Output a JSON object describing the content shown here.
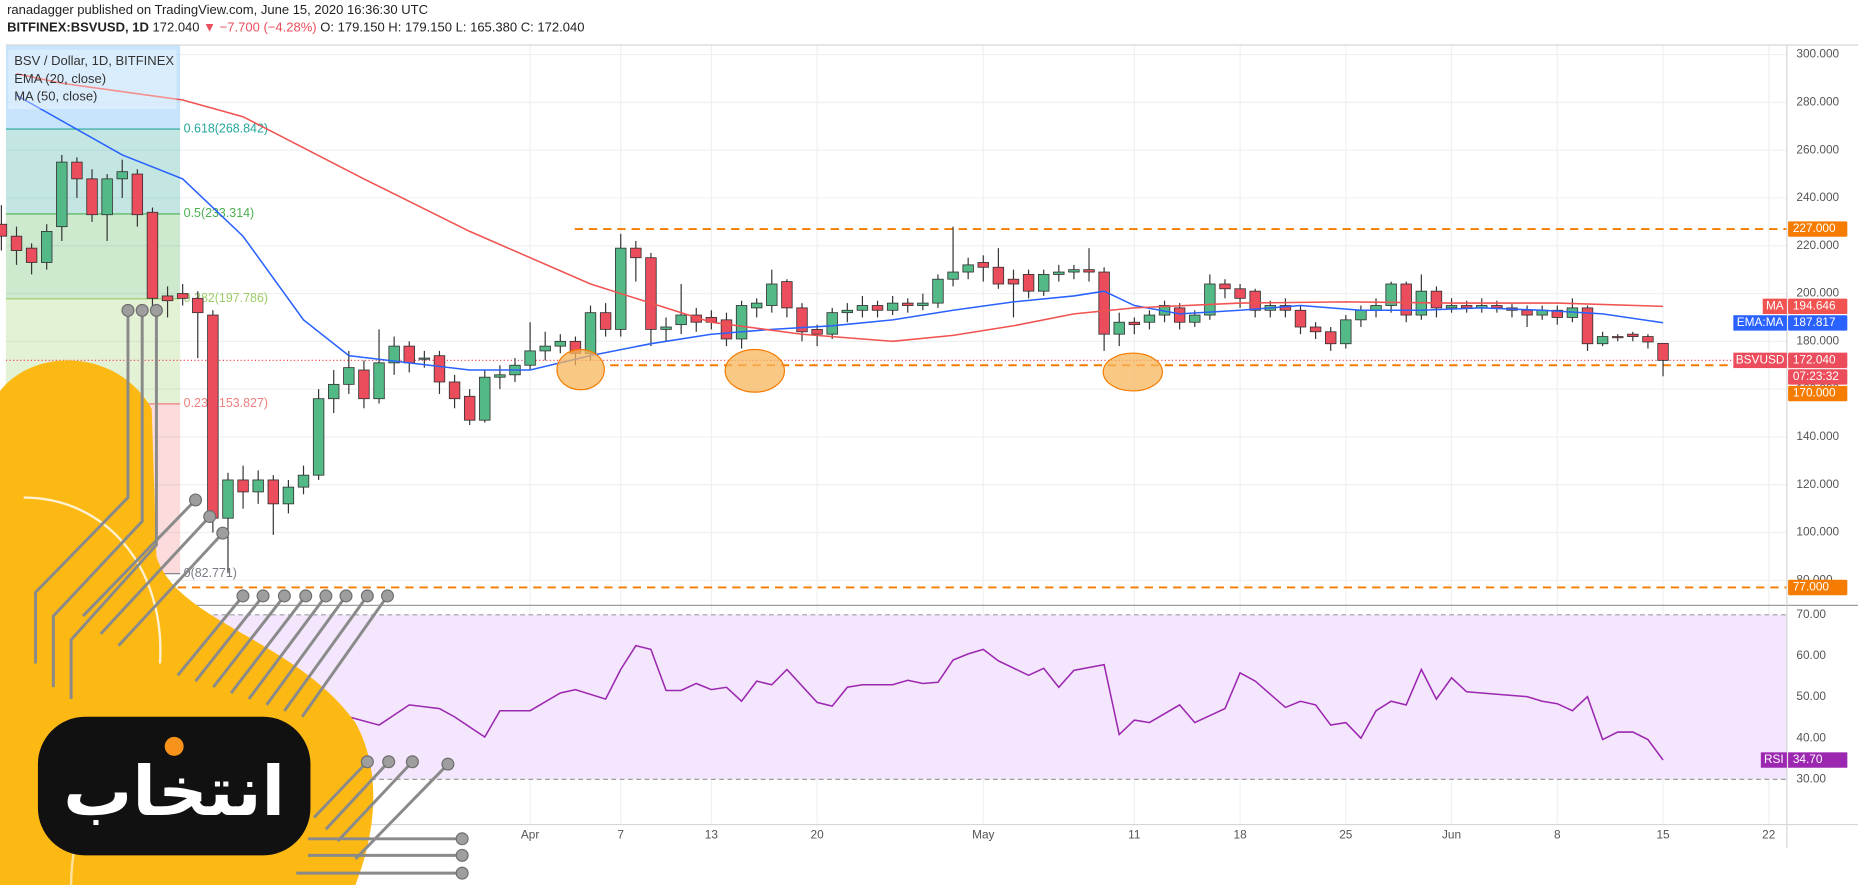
{
  "header": {
    "publisher": "ranadagger published on TradingView.com, June 15, 2020 16:36:30 UTC",
    "symbol": "BITFINEX:BSVUSD, 1D",
    "price": "172.040",
    "change": "▼ −7.700 (−4.28%)",
    "ohlc": "O: 179.150 H: 179.150 L: 165.380 C: 172.040"
  },
  "chart_data": {
    "type": "candlestick",
    "legend": [
      "BSV / Dollar, 1D, BITFINEX",
      "EMA (20, close)",
      "MA (50, close)"
    ],
    "up_color": "#53b987",
    "down_color": "#eb4d5c",
    "xlim": [
      0.3,
      118.2
    ],
    "xticks": [
      {
        "value": 35,
        "label": "Apr"
      },
      {
        "value": 41,
        "label": "7"
      },
      {
        "value": 47,
        "label": "13"
      },
      {
        "value": 54,
        "label": "20"
      },
      {
        "value": 65,
        "label": "May"
      },
      {
        "value": 75,
        "label": "11"
      },
      {
        "value": 82,
        "label": "18"
      },
      {
        "value": 89,
        "label": "25"
      },
      {
        "value": 96,
        "label": "Jun"
      },
      {
        "value": 103,
        "label": "8"
      },
      {
        "value": 110,
        "label": "15"
      },
      {
        "value": 117,
        "label": "22"
      }
    ],
    "ylim": [
      70,
      304
    ],
    "yticks": [
      {
        "value": 80,
        "label": "80.000"
      },
      {
        "value": 100,
        "label": "100.000"
      },
      {
        "value": 120,
        "label": "120.000"
      },
      {
        "value": 140,
        "label": "140.000"
      },
      {
        "value": 160,
        "label": "160.000"
      },
      {
        "value": 180,
        "label": "180.000"
      },
      {
        "value": 200,
        "label": "200.000"
      },
      {
        "value": 220,
        "label": "220.000"
      },
      {
        "value": 240,
        "label": "240.000"
      },
      {
        "value": 260,
        "label": "260.000"
      },
      {
        "value": 280,
        "label": "280.000"
      },
      {
        "value": 300,
        "label": "300.000"
      }
    ],
    "open": [
      229,
      224,
      219,
      213,
      228,
      255,
      248,
      233,
      248,
      250,
      234,
      199,
      200,
      198,
      191,
      106,
      122,
      117,
      122,
      112,
      119,
      124,
      156,
      162,
      168,
      156,
      171,
      178,
      173,
      174,
      163,
      157,
      147,
      165,
      166,
      170,
      176,
      178,
      180,
      175,
      192,
      185,
      219,
      215,
      185,
      187,
      191,
      190,
      189,
      181,
      194,
      195,
      205,
      194,
      185,
      183,
      192,
      193,
      195,
      193,
      196,
      195,
      196,
      206,
      209,
      213,
      211,
      206,
      208,
      201,
      208,
      209,
      210,
      209,
      183,
      188,
      188,
      191,
      194,
      188,
      191,
      204,
      202,
      201,
      193,
      195,
      193,
      186,
      184,
      179,
      189,
      193,
      195,
      204,
      191,
      201,
      194,
      195,
      194,
      195,
      194,
      193,
      191,
      193,
      190,
      194,
      179,
      182,
      183,
      182,
      179.15
    ],
    "high": [
      237,
      228,
      221,
      229,
      258,
      257,
      252,
      250,
      256,
      252,
      236,
      203,
      204,
      201,
      193,
      125,
      128,
      126,
      124,
      122,
      128,
      160,
      168,
      176,
      172,
      185,
      182,
      180,
      176,
      176,
      166,
      160,
      168,
      170,
      173,
      188,
      184,
      183,
      182,
      195,
      196,
      225,
      222,
      217,
      190,
      204,
      194,
      193,
      192,
      197,
      198,
      210,
      206,
      196,
      187,
      194,
      196,
      199,
      197,
      199,
      198,
      200,
      208,
      228,
      215,
      216,
      219,
      210,
      210,
      210,
      212,
      212,
      219,
      211,
      192,
      190,
      193,
      197,
      196,
      193,
      208,
      206,
      204,
      202,
      197,
      198,
      195,
      188,
      186,
      191,
      195,
      198,
      205,
      205,
      208,
      203,
      198,
      197,
      198,
      197,
      196,
      195,
      195,
      195,
      198,
      195,
      184,
      183,
      184,
      183,
      179.15
    ],
    "low": [
      218,
      212,
      208,
      210,
      222,
      240,
      230,
      222,
      240,
      228,
      194,
      190,
      195,
      173,
      100,
      83,
      110,
      112,
      99,
      108,
      116,
      122,
      150,
      158,
      152,
      154,
      166,
      167,
      169,
      158,
      152,
      145,
      146,
      160,
      163,
      168,
      172,
      175,
      170,
      172,
      182,
      182,
      205,
      178,
      180,
      183,
      184,
      185,
      178,
      177,
      190,
      192,
      190,
      180,
      178,
      181,
      188,
      190,
      190,
      191,
      192,
      193,
      194,
      203,
      206,
      205,
      202,
      190,
      198,
      199,
      205,
      206,
      205,
      176,
      178,
      183,
      185,
      188,
      185,
      186,
      189,
      198,
      194,
      190,
      190,
      190,
      183,
      181,
      176,
      177,
      186,
      190,
      192,
      188,
      189,
      190,
      192,
      192,
      192,
      192,
      190,
      186,
      189,
      187,
      188,
      176,
      178,
      180,
      180,
      177,
      165.38
    ],
    "close": [
      224,
      218,
      213,
      226,
      255,
      248,
      233,
      248,
      251,
      233,
      198,
      197,
      198,
      192,
      106,
      122,
      117,
      122,
      112,
      119,
      124,
      156,
      162,
      169,
      156,
      171,
      178,
      171,
      173,
      163,
      156,
      147,
      165,
      166,
      170,
      176,
      178,
      180,
      175,
      192,
      185,
      219,
      215,
      185,
      186,
      191,
      188,
      188,
      181,
      195,
      196,
      204,
      194,
      184,
      183,
      192,
      193,
      195,
      193,
      196,
      195,
      196,
      206,
      209,
      212,
      211,
      204,
      204,
      201,
      208,
      209,
      210,
      209,
      183,
      188,
      187,
      191,
      195,
      188,
      191,
      204,
      202,
      198,
      193,
      195,
      193,
      186,
      184,
      179,
      189,
      193,
      195,
      204,
      191,
      201,
      194,
      195,
      194,
      195,
      194,
      193,
      191,
      193,
      190,
      194,
      179,
      182,
      181.5,
      182,
      179.74,
      172.04
    ],
    "series": [
      {
        "name": "EMA:MA",
        "color": "#2962ff",
        "last_label": "187.817",
        "x": [
          1,
          8,
          12,
          16,
          20,
          23,
          27,
          31,
          35,
          39,
          43,
          47,
          51,
          55,
          59,
          63,
          67,
          71,
          73,
          75,
          78,
          82,
          86,
          90,
          94,
          98,
          102,
          106,
          110
        ],
        "values": [
          283,
          258,
          248,
          224,
          189,
          174,
          171,
          168,
          168,
          174,
          179,
          183,
          185,
          186.5,
          189,
          193,
          196.5,
          199,
          201,
          195,
          191.5,
          193,
          195,
          193,
          193,
          194,
          193,
          191.5,
          187.817
        ]
      },
      {
        "name": "MA",
        "color": "#f05350",
        "last_label": "194.646",
        "x": [
          1,
          4,
          12,
          16,
          24,
          31,
          39,
          47,
          53,
          59,
          63,
          67,
          71,
          75,
          82,
          89,
          96,
          103,
          110
        ],
        "values": [
          292,
          288,
          281,
          274,
          248,
          226,
          204,
          188,
          183,
          180,
          182.5,
          186.5,
          191.5,
          194,
          196,
          196.5,
          196,
          196,
          194.646
        ]
      }
    ],
    "levels": [
      {
        "value": 227,
        "label": "227.000"
      },
      {
        "value": 170,
        "label": "170.000"
      },
      {
        "value": 77,
        "label": "77.000"
      }
    ],
    "level_color": "#f57c00",
    "fib": [
      {
        "value": 268.842,
        "label": "0.618(268.842)",
        "color": "#26a69a"
      },
      {
        "value": 233.314,
        "label": "0.5(233.314)",
        "color": "#4caf50"
      },
      {
        "value": 197.786,
        "label": "0.382(197.786)",
        "color": "#9ccc65"
      },
      {
        "value": 153.827,
        "label": "0.236(153.827)",
        "color": "#ef7f7f"
      },
      {
        "value": 82.771,
        "label": "0(82.771)",
        "color": "#787b86"
      }
    ],
    "last_price": {
      "name": "BSVUSD",
      "value": 172.04,
      "label": "172.040",
      "countdown": "07:23:32",
      "color": "#eb4d5c"
    }
  },
  "rsi": {
    "type": "line",
    "name": "RSI",
    "color": "#9c27b0",
    "value_label": "34.70",
    "ylim": [
      19.3,
      72
    ],
    "yticks": [
      {
        "value": 30,
        "label": "30.00"
      },
      {
        "value": 40,
        "label": "40.00"
      },
      {
        "value": 50,
        "label": "50.00"
      },
      {
        "value": 60,
        "label": "60.00"
      },
      {
        "value": 70,
        "label": "70.00"
      }
    ],
    "band": [
      30,
      70
    ],
    "band_color": "#f3e6fd",
    "x": [
      23,
      25,
      27,
      29,
      30,
      32,
      33,
      35,
      37,
      38,
      40,
      41,
      42,
      43,
      44,
      45,
      46,
      47,
      48,
      49,
      50,
      51,
      52,
      54,
      55,
      56,
      57,
      59,
      60,
      61,
      62,
      63,
      64,
      65,
      66,
      68,
      69,
      70,
      71,
      73,
      74,
      75,
      76,
      78,
      79,
      81,
      82,
      83,
      85,
      86,
      87,
      88,
      89,
      90,
      91,
      92,
      93,
      94,
      95,
      96,
      97,
      99,
      101,
      102,
      103,
      104,
      105,
      106,
      107,
      108,
      109,
      110
    ],
    "values": [
      45.2,
      43.2,
      48.1,
      47.2,
      45.2,
      40.3,
      46.7,
      46.7,
      51,
      51.8,
      49.5,
      56.7,
      62.5,
      61.6,
      51.6,
      51.6,
      53.3,
      51.8,
      52.4,
      49,
      53.9,
      53,
      56.7,
      48.7,
      47.8,
      52.4,
      53,
      53,
      54.1,
      53.3,
      53.6,
      59,
      60.5,
      61.6,
      58.8,
      55.3,
      57,
      52.4,
      56.5,
      57.9,
      40.9,
      44.4,
      43.8,
      48.1,
      43.8,
      47.2,
      55.9,
      53.9,
      47.5,
      49,
      48.1,
      43.2,
      43.8,
      40,
      46.7,
      49,
      48.1,
      56.7,
      49.5,
      54.7,
      51.3,
      50.7,
      50.1,
      49,
      48.4,
      46.7,
      50.1,
      39.7,
      41.5,
      41.5,
      39.7,
      34.7
    ]
  },
  "watermark": "انتخاب"
}
